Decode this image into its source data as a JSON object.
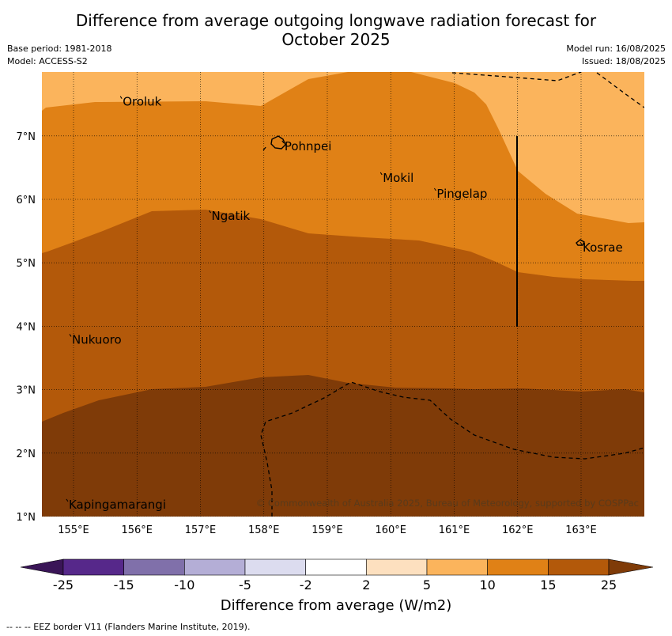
{
  "title": "Difference from average outgoing longwave radiation forecast for October 2025",
  "title_line1": "Difference from average outgoing longwave radiation forecast for",
  "title_line2": "October 2025",
  "base_period": "Base period: 1981-2018",
  "model": "Model: ACCESS-S2",
  "model_run": "Model run: 16/08/2025",
  "issued": "Issued: 18/08/2025",
  "map": {
    "lon_range": [
      154.5,
      164.0
    ],
    "lat_range": [
      1.0,
      8.0
    ],
    "lon_ticks": [
      "155°E",
      "156°E",
      "157°E",
      "158°E",
      "159°E",
      "160°E",
      "161°E",
      "162°E",
      "163°E"
    ],
    "lat_ticks": [
      "7°N",
      "6°N",
      "5°N",
      "4°N",
      "3°N",
      "2°N",
      "1°N"
    ],
    "grid": true,
    "places": [
      {
        "name": "Oroluk",
        "lon": 155.75,
        "lat": 7.6
      },
      {
        "name": "Pohnpei",
        "lon": 158.3,
        "lat": 6.9
      },
      {
        "name": "Mokil",
        "lon": 159.85,
        "lat": 6.4
      },
      {
        "name": "Pingelap",
        "lon": 160.7,
        "lat": 6.15
      },
      {
        "name": "Ngatik",
        "lon": 157.15,
        "lat": 5.8
      },
      {
        "name": "Kosrae",
        "lon": 163.0,
        "lat": 5.3
      },
      {
        "name": "Nukuoro",
        "lon": 154.95,
        "lat": 3.85
      },
      {
        "name": "Kapingamarangi",
        "lon": 154.9,
        "lat": 1.25
      }
    ],
    "copyright": "© Commonwealth of Australia 2025, Bureau of Meteorology, supported by COSPPac"
  },
  "colorbar": {
    "ticks": [
      "-25",
      "-15",
      "-10",
      "-5",
      "-2",
      "2",
      "5",
      "10",
      "15",
      "25"
    ],
    "colors": [
      "#3a1557",
      "#56288a",
      "#8070aa",
      "#b4aed6",
      "#dcdcef",
      "#ffffff",
      "#fde0bf",
      "#fbb45c",
      "#e08116",
      "#b3590a",
      "#7f3b08"
    ],
    "label": "Difference from average (W/m2)"
  },
  "legend_footer": "--  --  -- EEZ border V11 (Flanders Marine Institute, 2019)."
}
